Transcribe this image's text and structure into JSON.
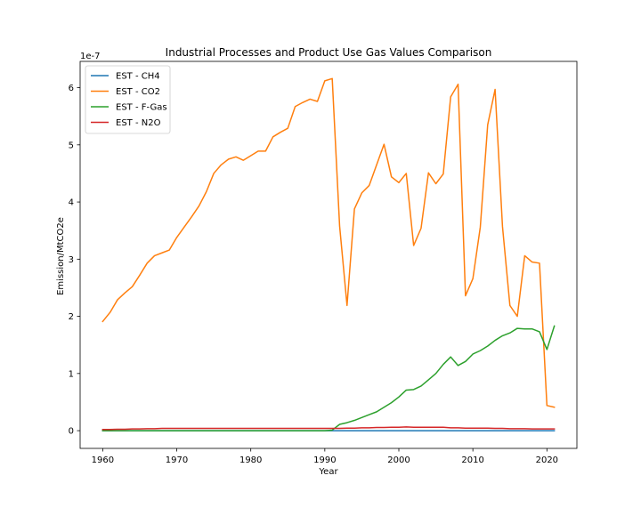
{
  "chart_data": {
    "type": "line",
    "title": "Industrial Processes and Product Use Gas Values Comparison",
    "xlabel": "Year",
    "ylabel": "Emission/MtCO2e",
    "y_offset_label": "1e-7",
    "y_scale": 1e-07,
    "xlim": [
      1956.95,
      2024.05
    ],
    "ylim": [
      -0.31,
      6.46
    ],
    "x_ticks": [
      1960,
      1970,
      1980,
      1990,
      2000,
      2010,
      2020
    ],
    "y_ticks": [
      0,
      1,
      2,
      3,
      4,
      5,
      6
    ],
    "grid": false,
    "legend_position": "upper-left",
    "x": [
      1960,
      1961,
      1962,
      1963,
      1964,
      1965,
      1966,
      1967,
      1968,
      1969,
      1970,
      1971,
      1972,
      1973,
      1974,
      1975,
      1976,
      1977,
      1978,
      1979,
      1980,
      1981,
      1982,
      1983,
      1984,
      1985,
      1986,
      1987,
      1988,
      1989,
      1990,
      1991,
      1992,
      1993,
      1994,
      1995,
      1996,
      1997,
      1998,
      1999,
      2000,
      2001,
      2002,
      2003,
      2004,
      2005,
      2006,
      2007,
      2008,
      2009,
      2010,
      2011,
      2012,
      2013,
      2014,
      2015,
      2016,
      2017,
      2018,
      2019,
      2020,
      2021
    ],
    "series": [
      {
        "name": "EST - CH4",
        "color": "#1f77b4",
        "values": [
          0.0,
          0.0,
          0.0,
          0.0,
          0.0,
          0.0,
          0.0,
          0.0,
          0.0,
          0.0,
          0.0,
          0.0,
          0.0,
          0.0,
          0.0,
          0.0,
          0.0,
          0.0,
          0.0,
          0.0,
          0.0,
          0.0,
          0.0,
          0.0,
          0.0,
          0.0,
          0.0,
          0.0,
          0.0,
          0.0,
          0.0,
          0.0,
          0.0,
          0.0,
          0.0,
          0.0,
          0.0,
          0.0,
          0.0,
          0.0,
          0.0,
          0.0,
          0.0,
          0.0,
          0.0,
          0.0,
          0.0,
          0.0,
          0.0,
          0.0,
          0.0,
          0.0,
          0.0,
          0.0,
          0.0,
          0.0,
          0.0,
          0.0,
          0.0,
          0.0,
          0.0,
          0.0
        ]
      },
      {
        "name": "EST - CO2",
        "color": "#ff7f0e",
        "values": [
          1.91,
          2.07,
          2.29,
          2.41,
          2.52,
          2.72,
          2.93,
          3.06,
          3.11,
          3.16,
          3.38,
          3.56,
          3.74,
          3.93,
          4.18,
          4.5,
          4.65,
          4.75,
          4.79,
          4.73,
          4.81,
          4.89,
          4.89,
          5.14,
          5.22,
          5.29,
          5.67,
          5.74,
          5.8,
          5.76,
          6.12,
          6.16,
          3.58,
          2.19,
          3.88,
          4.16,
          4.29,
          4.65,
          5.01,
          4.44,
          4.34,
          4.5,
          3.24,
          3.54,
          4.51,
          4.32,
          4.49,
          5.84,
          6.06,
          2.36,
          2.66,
          3.56,
          5.35,
          5.97,
          3.57,
          2.19,
          2.0,
          3.06,
          2.95,
          2.93,
          0.44,
          0.41
        ]
      },
      {
        "name": "EST - F-Gas",
        "color": "#2ca02c",
        "values": [
          0.0,
          0.0,
          0.0,
          0.0,
          0.0,
          0.0,
          0.0,
          0.0,
          0.0,
          0.0,
          0.0,
          0.0,
          0.0,
          0.0,
          0.0,
          0.0,
          0.0,
          0.0,
          0.0,
          0.0,
          0.0,
          0.0,
          0.0,
          0.0,
          0.0,
          0.0,
          0.0,
          0.0,
          0.0,
          0.0,
          0.0,
          0.01,
          0.11,
          0.14,
          0.18,
          0.23,
          0.28,
          0.33,
          0.41,
          0.49,
          0.59,
          0.71,
          0.72,
          0.78,
          0.89,
          1.0,
          1.16,
          1.29,
          1.14,
          1.21,
          1.34,
          1.4,
          1.48,
          1.58,
          1.66,
          1.71,
          1.79,
          1.78,
          1.78,
          1.73,
          1.42,
          1.83
        ]
      },
      {
        "name": "EST - N2O",
        "color": "#d62728",
        "values": [
          0.02,
          0.02,
          0.025,
          0.025,
          0.03,
          0.03,
          0.035,
          0.035,
          0.04,
          0.04,
          0.04,
          0.04,
          0.04,
          0.04,
          0.04,
          0.04,
          0.04,
          0.04,
          0.04,
          0.04,
          0.04,
          0.04,
          0.04,
          0.04,
          0.04,
          0.04,
          0.04,
          0.04,
          0.04,
          0.04,
          0.04,
          0.04,
          0.04,
          0.045,
          0.045,
          0.05,
          0.05,
          0.055,
          0.055,
          0.06,
          0.06,
          0.065,
          0.06,
          0.06,
          0.06,
          0.06,
          0.06,
          0.05,
          0.05,
          0.045,
          0.045,
          0.045,
          0.045,
          0.04,
          0.04,
          0.035,
          0.035,
          0.035,
          0.03,
          0.03,
          0.03,
          0.03
        ]
      }
    ]
  }
}
